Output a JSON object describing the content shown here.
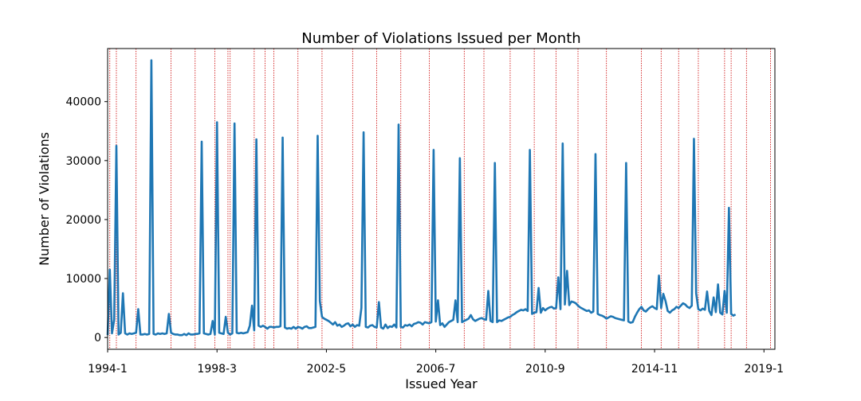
{
  "chart_data": {
    "type": "line",
    "title": "Number of Violations Issued per Month",
    "xlabel": "Issued Year",
    "ylabel": "Number of Violations",
    "x_tick_labels": [
      "1994-1",
      "1998-3",
      "2002-5",
      "2006-7",
      "2010-9",
      "2014-11",
      "2019-1"
    ],
    "y_ticks": [
      0,
      10000,
      20000,
      30000,
      40000
    ],
    "xlim": [
      0,
      305
    ],
    "ylim": [
      -2000,
      49000
    ],
    "grid": false,
    "series_color": "#1f77b4",
    "marker_color": "#cc0000",
    "monthly_values": [
      400,
      11500,
      700,
      3000,
      32500,
      500,
      800,
      7500,
      700,
      500,
      700,
      600,
      700,
      800,
      4800,
      500,
      500,
      600,
      500,
      600,
      47000,
      600,
      500,
      700,
      600,
      700,
      600,
      700,
      4000,
      800,
      600,
      500,
      500,
      400,
      400,
      600,
      400,
      700,
      500,
      500,
      600,
      600,
      700,
      33200,
      700,
      600,
      500,
      600,
      2800,
      500,
      36500,
      800,
      700,
      600,
      3500,
      800,
      500,
      700,
      36300,
      800,
      700,
      800,
      700,
      800,
      900,
      2000,
      5400,
      1200,
      33600,
      2000,
      1800,
      2000,
      1800,
      1500,
      1800,
      1800,
      1700,
      1800,
      1800,
      1900,
      33900,
      1700,
      1500,
      1600,
      1500,
      1800,
      1500,
      1800,
      1700,
      1500,
      1800,
      1900,
      1600,
      1600,
      1700,
      1800,
      34200,
      6200,
      3500,
      3200,
      3000,
      2800,
      2500,
      2200,
      2600,
      2000,
      2200,
      1800,
      2000,
      2300,
      2400,
      1900,
      2200,
      1800,
      2100,
      2000,
      5000,
      34800,
      1800,
      1700,
      2000,
      2100,
      1800,
      1700,
      6000,
      1700,
      1500,
      2200,
      1600,
      1900,
      1800,
      2200,
      1700,
      36100,
      1800,
      1700,
      2100,
      2000,
      2200,
      1900,
      2300,
      2400,
      2600,
      2500,
      2200,
      2600,
      2500,
      2400,
      2600,
      31800,
      2700,
      6300,
      2100,
      2400,
      1800,
      2200,
      2600,
      2800,
      3000,
      6300,
      2600,
      30400,
      2600,
      2800,
      3000,
      3200,
      3800,
      3100,
      2800,
      3000,
      3200,
      3300,
      3100,
      3000,
      7900,
      2800,
      2600,
      29600,
      2600,
      2900,
      2800,
      3000,
      3200,
      3400,
      3500,
      3800,
      4000,
      4300,
      4500,
      4700,
      4600,
      4800,
      4500,
      31800,
      4000,
      4200,
      4300,
      8400,
      4200,
      5000,
      4600,
      4900,
      5100,
      5200,
      4900,
      5000,
      10200,
      4800,
      32900,
      5600,
      11300,
      5500,
      6100,
      6000,
      5800,
      5400,
      5100,
      4900,
      4700,
      4500,
      4600,
      4200,
      4400,
      31100,
      4000,
      3800,
      3700,
      3500,
      3200,
      3400,
      3600,
      3500,
      3300,
      3200,
      3100,
      3000,
      2900,
      29600,
      2700,
      2500,
      2600,
      3500,
      4200,
      4800,
      5200,
      4600,
      4400,
      4800,
      5100,
      5300,
      5000,
      4800,
      10500,
      5000,
      7400,
      6200,
      4500,
      4200,
      4600,
      4800,
      5200,
      5000,
      5400,
      5800,
      5600,
      5200,
      5000,
      5400,
      33700,
      7500,
      4800,
      4600,
      4900,
      4700,
      7800,
      4500,
      3800,
      6800,
      4300,
      9000,
      4200,
      3900,
      7900,
      4200,
      22000,
      4000,
      3700,
      3900
    ],
    "vertical_marker_indices": [
      1,
      4,
      13,
      29,
      40,
      49,
      55,
      56,
      67,
      72,
      76,
      87,
      98,
      112,
      123,
      134,
      147,
      163,
      172,
      184,
      195,
      205,
      215,
      228,
      244,
      253,
      261,
      270,
      282,
      285,
      292,
      303
    ]
  }
}
